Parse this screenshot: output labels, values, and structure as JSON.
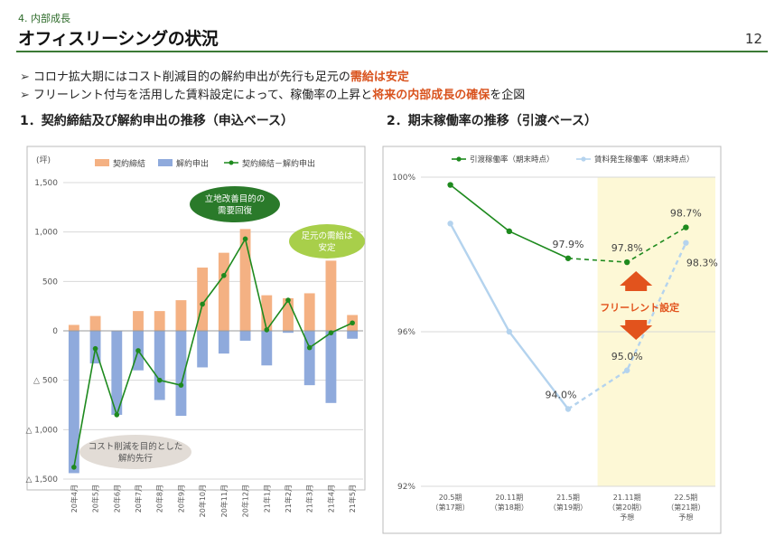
{
  "header": {
    "section": "4. 内部成長",
    "title": "オフィスリーシングの状況",
    "page_number": "12"
  },
  "bullets": [
    {
      "marker": "➢",
      "pre": "コロナ拡大期にはコスト削減目的の解約申出が先行も足元の",
      "highlight": "需給は安定",
      "post": ""
    },
    {
      "marker": "➢",
      "pre": "フリーレント付与を活用した賃料設定によって、稼働率の上昇と",
      "highlight": "将来の内部成長の確保",
      "post": "を企図"
    }
  ],
  "colors": {
    "green": "#1e8a1e",
    "orange_bar": "#f4b183",
    "blue_bar": "#8faadc",
    "light_blue": "#b4d3ee",
    "accent_red": "#e2531d",
    "highlight_bg": "#fdf8d6",
    "bubble_dark": "#2a7a2a",
    "bubble_light": "#a8cf4a",
    "bubble_grey": "#e2dcd6"
  },
  "chart_data": [
    {
      "type": "bar",
      "title": "1．契約締結及び解約申出の推移（申込ベース）",
      "unit_label": "(坪)",
      "categories": [
        "20年4月",
        "20年5月",
        "20年6月",
        "20年7月",
        "20年8月",
        "20年9月",
        "20年10月",
        "20年11月",
        "20年12月",
        "21年1月",
        "21年2月",
        "21年3月",
        "21年4月",
        "21年5月"
      ],
      "series": [
        {
          "name": "契約締結",
          "kind": "bar",
          "values": [
            60,
            150,
            0,
            200,
            200,
            310,
            640,
            790,
            1030,
            360,
            330,
            380,
            710,
            160
          ]
        },
        {
          "name": "解約申出",
          "kind": "bar",
          "values": [
            -1440,
            -330,
            -850,
            -400,
            -700,
            -860,
            -370,
            -230,
            -100,
            -350,
            -20,
            -550,
            -730,
            -80
          ]
        },
        {
          "name": "契約締結－解約申出",
          "kind": "line",
          "values": [
            -1380,
            -180,
            -850,
            -200,
            -500,
            -550,
            270,
            560,
            930,
            10,
            310,
            -170,
            -20,
            80
          ]
        }
      ],
      "yticks": [
        {
          "value": 1500,
          "label": "1,500"
        },
        {
          "value": 1000,
          "label": "1,000"
        },
        {
          "value": 500,
          "label": "500"
        },
        {
          "value": 0,
          "label": "0"
        },
        {
          "value": -500,
          "label": "△ 500"
        },
        {
          "value": -1000,
          "label": "△ 1,000"
        },
        {
          "value": -1500,
          "label": "△ 1,500"
        }
      ],
      "ylim": [
        -1500,
        1500
      ],
      "annotations": [
        {
          "text": [
            "立地改善目的の",
            "需要回復"
          ],
          "style": "dark"
        },
        {
          "text": [
            "足元の需給は",
            "安定"
          ],
          "style": "light"
        },
        {
          "text": [
            "コスト削減を目的とした",
            "解約先行"
          ],
          "style": "grey"
        }
      ]
    },
    {
      "type": "line",
      "title": "2．期末稼働率の推移（引渡ベース）",
      "categories": [
        [
          "20.5期",
          "（第17期）"
        ],
        [
          "20.11期",
          "（第18期）"
        ],
        [
          "21.5期",
          "（第19期）"
        ],
        [
          "21.11期",
          "（第20期）",
          "予想"
        ],
        [
          "22.5期",
          "（第21期）",
          "予想"
        ]
      ],
      "series": [
        {
          "name": "引渡稼働率（期末時点）",
          "values": [
            99.8,
            98.6,
            97.9,
            97.8,
            98.7
          ]
        },
        {
          "name": "賃料発生稼働率（期末時点）",
          "values": [
            98.8,
            96.0,
            94.0,
            95.0,
            98.3
          ]
        }
      ],
      "point_labels": [
        {
          "series": 0,
          "index": 2,
          "text": "97.9%"
        },
        {
          "series": 0,
          "index": 3,
          "text": "97.8%"
        },
        {
          "series": 0,
          "index": 4,
          "text": "98.7%"
        },
        {
          "series": 1,
          "index": 2,
          "text": "94.0%"
        },
        {
          "series": 1,
          "index": 3,
          "text": "95.0%"
        },
        {
          "series": 1,
          "index": 4,
          "text": "98.3%"
        }
      ],
      "yticks": [
        {
          "value": 100,
          "label": "100%"
        },
        {
          "value": 96,
          "label": "96%"
        },
        {
          "value": 92,
          "label": "92%"
        }
      ],
      "ylim": [
        92,
        100
      ],
      "forecast_from_index": 2,
      "highlight_from_index": 3,
      "annotation": "フリーレント設定"
    }
  ]
}
